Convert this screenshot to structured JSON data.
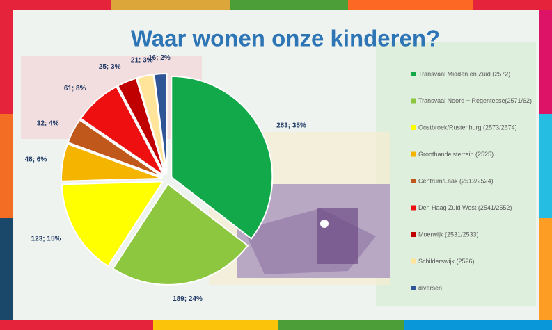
{
  "chart_data": {
    "type": "pie",
    "title": "Waar wonen onze kinderen?",
    "categories": [
      "Transvaal Midden en Zuid (2572)",
      "Transvaal Noord + Regentesse(2571/62)",
      "Oostbroek/Rustenburg (2573/2574)",
      "Groothandelsterrein (2525)",
      "Centrum/Laak (2512/2524)",
      "Den Haag Zuid West (2541/2552)",
      "Moerwijk (2531/2533)",
      "Schilderswijk (2526)",
      "diversen"
    ],
    "values": [
      283,
      189,
      123,
      48,
      32,
      61,
      25,
      21,
      16
    ],
    "value_labels": [
      "283; 35%",
      "189; 24%",
      "123; 15%",
      "48; 6%",
      "32; 4%",
      "61; 8%",
      "25; 3%",
      "21; 3%",
      "16; 2%"
    ],
    "colors": [
      "#12a94a",
      "#8dc63f",
      "#ffff00",
      "#f5b400",
      "#c0581b",
      "#ee1010",
      "#c00000",
      "#ffe49a",
      "#2f5597"
    ],
    "legend": "right"
  }
}
